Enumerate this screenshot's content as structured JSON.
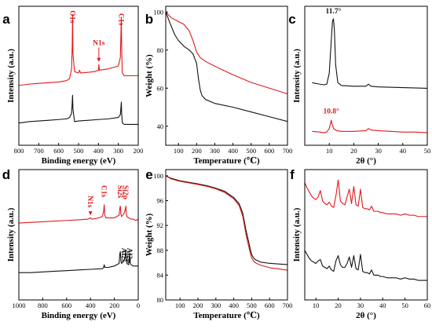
{
  "colors": {
    "black": "#111111",
    "red": "#e0191c"
  },
  "chart_data": [
    {
      "panel": "a",
      "type": "line",
      "xlabel": "Binding energy (eV)",
      "ylabel": "Intensity (a.u.)",
      "xlim": [
        800,
        200
      ],
      "x_reversed": true,
      "xticks": [
        800,
        700,
        600,
        500,
        400,
        300,
        200
      ],
      "ylim": [
        0,
        100
      ],
      "yticks": [],
      "grid": false,
      "series": [
        {
          "color": "red",
          "x": [
            800,
            750,
            700,
            650,
            600,
            560,
            545,
            535,
            532,
            530,
            528,
            520,
            500,
            495,
            490,
            450,
            420,
            400,
            398,
            395,
            350,
            300,
            290,
            287,
            285,
            283,
            280,
            270,
            250,
            200
          ],
          "y": [
            43,
            44,
            44.5,
            45,
            45.5,
            46.5,
            48,
            55,
            70,
            94,
            66,
            53,
            52,
            54,
            52,
            52.5,
            53,
            54,
            58,
            54,
            55,
            57,
            63,
            80,
            92,
            68,
            52,
            50,
            50,
            50
          ]
        },
        {
          "color": "black",
          "x": [
            800,
            750,
            700,
            650,
            600,
            560,
            545,
            535,
            532,
            530,
            528,
            520,
            500,
            450,
            400,
            350,
            300,
            290,
            287,
            285,
            283,
            280,
            270,
            250,
            200
          ],
          "y": [
            16,
            17,
            17.5,
            18,
            18.5,
            19,
            20,
            23,
            30,
            36,
            26,
            17,
            17.5,
            18,
            18.5,
            19,
            20,
            22,
            27,
            31,
            22,
            16,
            15,
            15,
            15
          ]
        }
      ],
      "annotations": [
        {
          "text": "O1s",
          "x": 530,
          "y": 97,
          "color": "red",
          "arrow": false
        },
        {
          "text": "C1s",
          "x": 285,
          "y": 95,
          "color": "red",
          "arrow": false
        },
        {
          "text": "N1s",
          "x": 398,
          "y": 72,
          "color": "red",
          "arrow": true,
          "arrow_to": 60
        }
      ]
    },
    {
      "panel": "b",
      "type": "line",
      "xlabel": "Temperature (℃)",
      "ylabel": "Weight (%)",
      "xlim": [
        30,
        700
      ],
      "xticks": [
        100,
        200,
        300,
        400,
        500,
        600,
        700
      ],
      "ylim": [
        30,
        103
      ],
      "yticks": [
        40,
        60,
        80,
        100
      ],
      "grid": false,
      "series": [
        {
          "color": "red",
          "x": [
            30,
            60,
            100,
            130,
            160,
            180,
            200,
            220,
            250,
            300,
            400,
            500,
            600,
            700
          ],
          "y": [
            100,
            97,
            95,
            93.5,
            90,
            85,
            79,
            76,
            74,
            71.5,
            67,
            63,
            60,
            57
          ]
        },
        {
          "color": "black",
          "x": [
            30,
            50,
            80,
            100,
            130,
            160,
            180,
            200,
            210,
            220,
            230,
            250,
            300,
            400,
            500,
            600,
            700
          ],
          "y": [
            100,
            95,
            88,
            85,
            82,
            80,
            78,
            73,
            65,
            59,
            56,
            54,
            52,
            50,
            47.5,
            45,
            42.5
          ]
        }
      ]
    },
    {
      "panel": "c",
      "type": "line",
      "xlabel": "2θ (°)",
      "ylabel": "Intensity (a.u.)",
      "xlim": [
        0,
        50
      ],
      "xticks": [
        10,
        20,
        30,
        40,
        50
      ],
      "ylim": [
        0,
        100
      ],
      "yticks": [],
      "grid": false,
      "series": [
        {
          "color": "black",
          "x": [
            3,
            6,
            8,
            9,
            10,
            10.8,
            11.3,
            11.7,
            12.1,
            12.6,
            13.5,
            15,
            20,
            25,
            26,
            27,
            30,
            40,
            50
          ],
          "y": [
            45,
            44,
            43.5,
            44,
            52,
            75,
            89,
            91,
            83,
            58,
            45,
            43,
            42.5,
            42.5,
            44,
            42.5,
            42,
            41.5,
            41
          ]
        },
        {
          "color": "red",
          "x": [
            3,
            6,
            8,
            9,
            10,
            10.4,
            10.8,
            11.2,
            11.8,
            13,
            15,
            20,
            25,
            26,
            27,
            30,
            40,
            45,
            50
          ],
          "y": [
            10,
            9.5,
            9,
            9.5,
            12,
            15,
            18,
            15,
            12,
            10.5,
            10,
            10,
            10.5,
            12,
            11,
            10.5,
            9.5,
            9.5,
            9
          ]
        }
      ],
      "annotations": [
        {
          "text": "11.7°",
          "x": 11.7,
          "y": 95,
          "color": "black"
        },
        {
          "text": "10.8°",
          "x": 10.8,
          "y": 23,
          "color": "red"
        }
      ]
    },
    {
      "panel": "d",
      "type": "line",
      "xlabel": "Binding energy (eV)",
      "ylabel": "Intensity (a.u.)",
      "xlim": [
        1000,
        0
      ],
      "x_reversed": true,
      "xticks": [
        1000,
        800,
        600,
        400,
        200,
        0
      ],
      "ylim": [
        0,
        100
      ],
      "yticks": [],
      "grid": false,
      "series": [
        {
          "color": "red",
          "x": [
            1000,
            900,
            800,
            700,
            600,
            500,
            420,
            400,
            390,
            350,
            300,
            290,
            285,
            280,
            270,
            250,
            200,
            160,
            155,
            150,
            145,
            140,
            120,
            110,
            104,
            100,
            95,
            80,
            60,
            40,
            20,
            0
          ],
          "y": [
            59,
            59.5,
            60,
            60.5,
            61,
            61.5,
            62,
            63,
            62,
            62.5,
            64,
            68,
            73,
            65,
            63,
            63,
            63,
            65,
            70,
            72,
            66,
            64,
            66,
            69,
            72,
            66,
            64,
            63,
            62,
            62,
            61,
            62
          ]
        },
        {
          "color": "black",
          "x": [
            1000,
            900,
            800,
            700,
            600,
            500,
            400,
            300,
            290,
            285,
            280,
            250,
            200,
            160,
            155,
            150,
            145,
            140,
            120,
            110,
            104,
            100,
            95,
            80,
            75,
            72,
            70,
            60,
            40,
            20,
            0
          ],
          "y": [
            21,
            21,
            21.5,
            22,
            22.5,
            23,
            23.5,
            24,
            25,
            27,
            25,
            25,
            26,
            28,
            35,
            37,
            30,
            28,
            30,
            33,
            38,
            31,
            28,
            27,
            33,
            36,
            29,
            27,
            26,
            26,
            26
          ]
        }
      ],
      "annotations": [
        {
          "text": "N1s",
          "x": 400,
          "y": 80,
          "color": "red",
          "arrow": true,
          "arrow_to": 65
        },
        {
          "text": "C1s",
          "x": 285,
          "y": 88,
          "color": "red",
          "arrow": false
        },
        {
          "text": "Si2s",
          "x": 152,
          "y": 88,
          "color": "red",
          "arrow": false
        },
        {
          "text": "Si2p",
          "x": 104,
          "y": 88,
          "color": "red",
          "arrow": false
        },
        {
          "text": "Al2s",
          "x": 119,
          "y": 40,
          "color": "black",
          "arrow": false
        },
        {
          "text": "Al2p",
          "x": 74,
          "y": 40,
          "color": "black",
          "arrow": false
        }
      ]
    },
    {
      "panel": "e",
      "type": "line",
      "xlabel": "Temperature (℃)",
      "ylabel": "Weight (%)",
      "xlim": [
        20,
        700
      ],
      "xticks": [
        100,
        200,
        300,
        400,
        500,
        600,
        700
      ],
      "ylim": [
        80,
        101
      ],
      "yticks": [
        80,
        84,
        88,
        92,
        96,
        100
      ],
      "grid": false,
      "series": [
        {
          "color": "black",
          "x": [
            20,
            50,
            100,
            200,
            250,
            300,
            350,
            400,
            430,
            450,
            470,
            490,
            500,
            510,
            520,
            550,
            600,
            650,
            700
          ],
          "y": [
            100,
            99.6,
            99.2,
            98.7,
            98.4,
            98,
            97.5,
            96.5,
            95.5,
            94,
            91,
            88.5,
            87.3,
            86.8,
            86.5,
            86.1,
            85.9,
            85.8,
            85.7
          ]
        },
        {
          "color": "red",
          "x": [
            20,
            50,
            100,
            200,
            250,
            300,
            350,
            400,
            430,
            450,
            470,
            490,
            500,
            510,
            520,
            550,
            600,
            650,
            700
          ],
          "y": [
            100,
            99.5,
            99.1,
            98.6,
            98.3,
            97.9,
            97.3,
            96.3,
            95.2,
            93.5,
            90.3,
            87.8,
            86.8,
            86.3,
            86,
            85.6,
            85.2,
            85,
            84.8
          ]
        }
      ]
    },
    {
      "panel": "f",
      "type": "line",
      "xlabel": "2θ (°)",
      "ylabel": "Intensity (a.u.)",
      "xlim": [
        5,
        60
      ],
      "xticks": [
        10,
        20,
        30,
        40,
        50,
        60
      ],
      "ylim": [
        0,
        100
      ],
      "yticks": [],
      "grid": false,
      "series": [
        {
          "color": "red",
          "x": [
            5,
            6,
            7,
            8,
            9,
            10,
            11,
            12,
            13,
            14,
            15,
            16,
            17,
            18,
            19,
            20,
            21,
            22,
            23,
            24,
            25,
            26,
            27,
            28,
            29,
            30,
            31,
            32,
            33,
            34,
            35,
            36,
            37,
            38,
            39,
            40,
            42,
            44,
            46,
            48,
            50,
            52,
            54,
            56,
            58,
            60
          ],
          "y": [
            90,
            86,
            83,
            80,
            78,
            77,
            79,
            84,
            76,
            74,
            73,
            75,
            72,
            71,
            80,
            92,
            76,
            74,
            73,
            79,
            85,
            74,
            87,
            73,
            72,
            85,
            71,
            70,
            70,
            69,
            72,
            68,
            68,
            68,
            67,
            67,
            66,
            66,
            66,
            65,
            66,
            65,
            65,
            64,
            64,
            64
          ]
        },
        {
          "color": "black",
          "x": [
            5,
            6,
            7,
            8,
            9,
            10,
            11,
            12,
            13,
            14,
            15,
            16,
            17,
            18,
            19,
            20,
            21,
            22,
            23,
            24,
            25,
            26,
            27,
            28,
            29,
            30,
            31,
            32,
            33,
            34,
            35,
            36,
            37,
            38,
            39,
            40,
            42,
            44,
            46,
            48,
            50,
            52,
            54,
            56,
            58,
            60
          ],
          "y": [
            38,
            35,
            32,
            30,
            29,
            28,
            30,
            31,
            26,
            25,
            24,
            26,
            23,
            22,
            30,
            34,
            27,
            25,
            25,
            28,
            33,
            25,
            34,
            24,
            23,
            35,
            22,
            21,
            21,
            20,
            23,
            19,
            19,
            19,
            18,
            18,
            17,
            17,
            17,
            16,
            17,
            16,
            16,
            15,
            15,
            15
          ]
        }
      ]
    }
  ]
}
